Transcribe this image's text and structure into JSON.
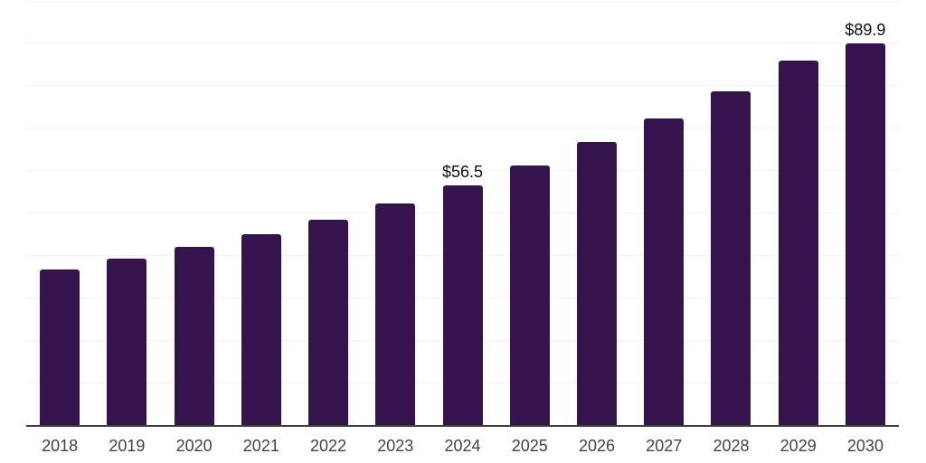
{
  "chart_data": {
    "type": "bar",
    "title": "",
    "xlabel": "",
    "ylabel": "",
    "categories": [
      "2018",
      "2019",
      "2020",
      "2021",
      "2022",
      "2023",
      "2024",
      "2025",
      "2026",
      "2027",
      "2028",
      "2029",
      "2030"
    ],
    "values": [
      36.6,
      39.2,
      42.0,
      45.0,
      48.3,
      52.2,
      56.5,
      61.1,
      66.8,
      72.3,
      78.7,
      86.0,
      89.9
    ],
    "value_labels": {
      "2024": "$56.5",
      "2030": "$89.9"
    },
    "value_prefix": "$",
    "ylim": [
      0,
      100
    ],
    "grid_step": 10,
    "grid": "horizontal",
    "y_tick_labels_shown": false,
    "legend": "none"
  },
  "style": {
    "bar_color": "#35134c",
    "grid_color": "#f1f1f1",
    "axis_color": "#3d3d3d",
    "x_tick_label_color": "#434343",
    "value_label_color": "#0d0d0d",
    "background": "#ffffff"
  }
}
